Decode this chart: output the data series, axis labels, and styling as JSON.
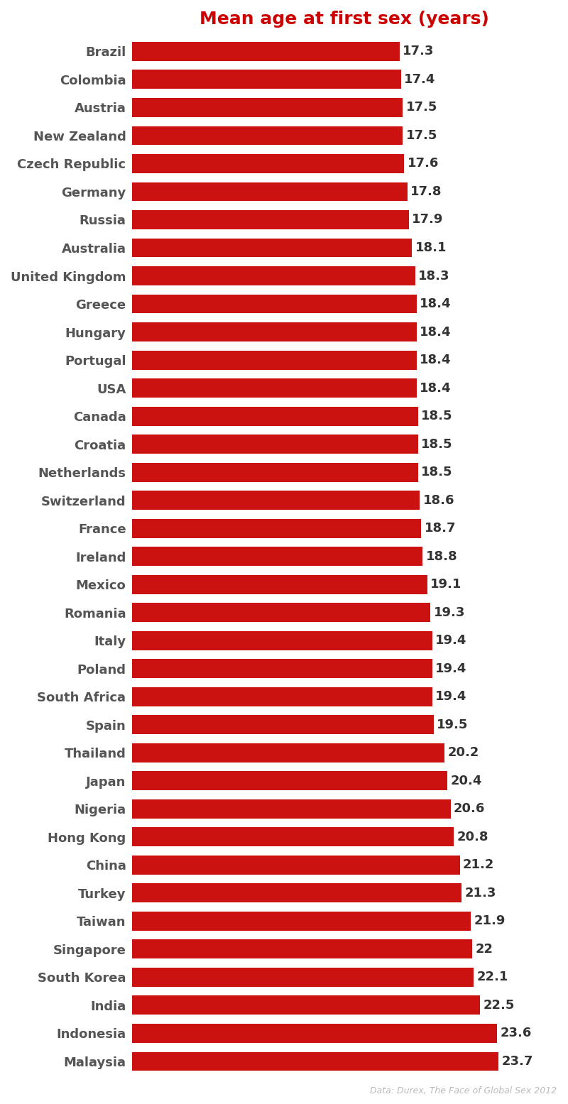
{
  "title": "Mean age at first sex (years)",
  "title_color": "#cc0000",
  "bar_color": "#cc1111",
  "label_color": "#555555",
  "value_color": "#333333",
  "background_color": "#ffffff",
  "source_text": "Data: Durex, The Face of Global Sex 2012",
  "source_color": "#bbbbbb",
  "categories": [
    "Brazil",
    "Colombia",
    "Austria",
    "New Zealand",
    "Czech Republic",
    "Germany",
    "Russia",
    "Australia",
    "United Kingdom",
    "Greece",
    "Hungary",
    "Portugal",
    "USA",
    "Canada",
    "Croatia",
    "Netherlands",
    "Switzerland",
    "France",
    "Ireland",
    "Mexico",
    "Romania",
    "Italy",
    "Poland",
    "South Africa",
    "Spain",
    "Thailand",
    "Japan",
    "Nigeria",
    "Hong Kong",
    "China",
    "Turkey",
    "Taiwan",
    "Singapore",
    "South Korea",
    "India",
    "Indonesia",
    "Malaysia"
  ],
  "values": [
    17.3,
    17.4,
    17.5,
    17.5,
    17.6,
    17.8,
    17.9,
    18.1,
    18.3,
    18.4,
    18.4,
    18.4,
    18.4,
    18.5,
    18.5,
    18.5,
    18.6,
    18.7,
    18.8,
    19.1,
    19.3,
    19.4,
    19.4,
    19.4,
    19.5,
    20.2,
    20.4,
    20.6,
    20.8,
    21.2,
    21.3,
    21.9,
    22.0,
    22.1,
    22.5,
    23.6,
    23.7
  ],
  "xlim_min": 0,
  "xlim_max": 27.5,
  "title_fontsize": 18,
  "label_fontsize": 13,
  "value_fontsize": 13,
  "source_fontsize": 9,
  "bar_height": 0.68
}
